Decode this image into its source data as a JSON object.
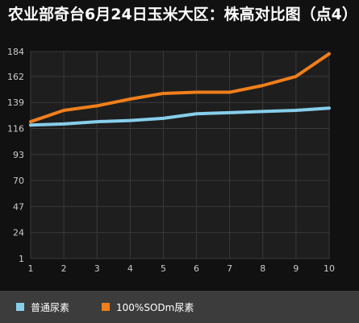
{
  "chart_data": {
    "type": "line",
    "title": "农业部奇台6月24日玉米大区：株高对比图（点4）",
    "x": [
      1,
      2,
      3,
      4,
      5,
      6,
      7,
      8,
      9,
      10
    ],
    "yticks": [
      1,
      24,
      47,
      70,
      93,
      116,
      139,
      162,
      184
    ],
    "ylim": [
      1,
      184
    ],
    "xlim": [
      1,
      10
    ],
    "grid": true,
    "legend_position": "bottom",
    "series": [
      {
        "name": "普通尿素",
        "color": "#87ceeb",
        "values": [
          119,
          120,
          122,
          123,
          125,
          129,
          130,
          131,
          132,
          134
        ]
      },
      {
        "name": "100%SODm尿素",
        "color": "#f07f1b",
        "values": [
          122,
          132,
          136,
          142,
          147,
          148,
          148,
          154,
          162,
          182
        ]
      }
    ]
  },
  "colors": {
    "background": "#111111",
    "plot_background": "#1e1e1e",
    "grid": "#3a3a3a",
    "legend_background": "#3c3c3c",
    "tick_label": "#cccccc"
  }
}
